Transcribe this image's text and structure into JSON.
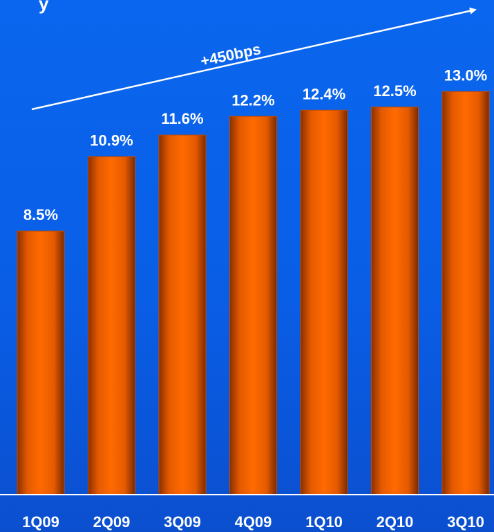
{
  "chart_data": {
    "type": "bar",
    "title": "",
    "xlabel": "",
    "ylabel": "",
    "categories": [
      "1Q09",
      "2Q09",
      "3Q09",
      "4Q09",
      "1Q10",
      "2Q10",
      "3Q10"
    ],
    "values": [
      8.5,
      10.9,
      11.6,
      12.2,
      12.4,
      12.5,
      13.0
    ],
    "value_labels": [
      "8.5%",
      "10.9%",
      "11.6%",
      "12.2%",
      "12.4%",
      "12.5%",
      "13.0%"
    ],
    "annotation": "+450bps",
    "ylim": [
      0,
      13.5
    ],
    "grid": false,
    "legend": "none",
    "colors": {
      "bar_light": "#ff6a00",
      "bar_dark": "#7a2a00",
      "text": "#ffffff",
      "axis": "#ffffff"
    }
  }
}
